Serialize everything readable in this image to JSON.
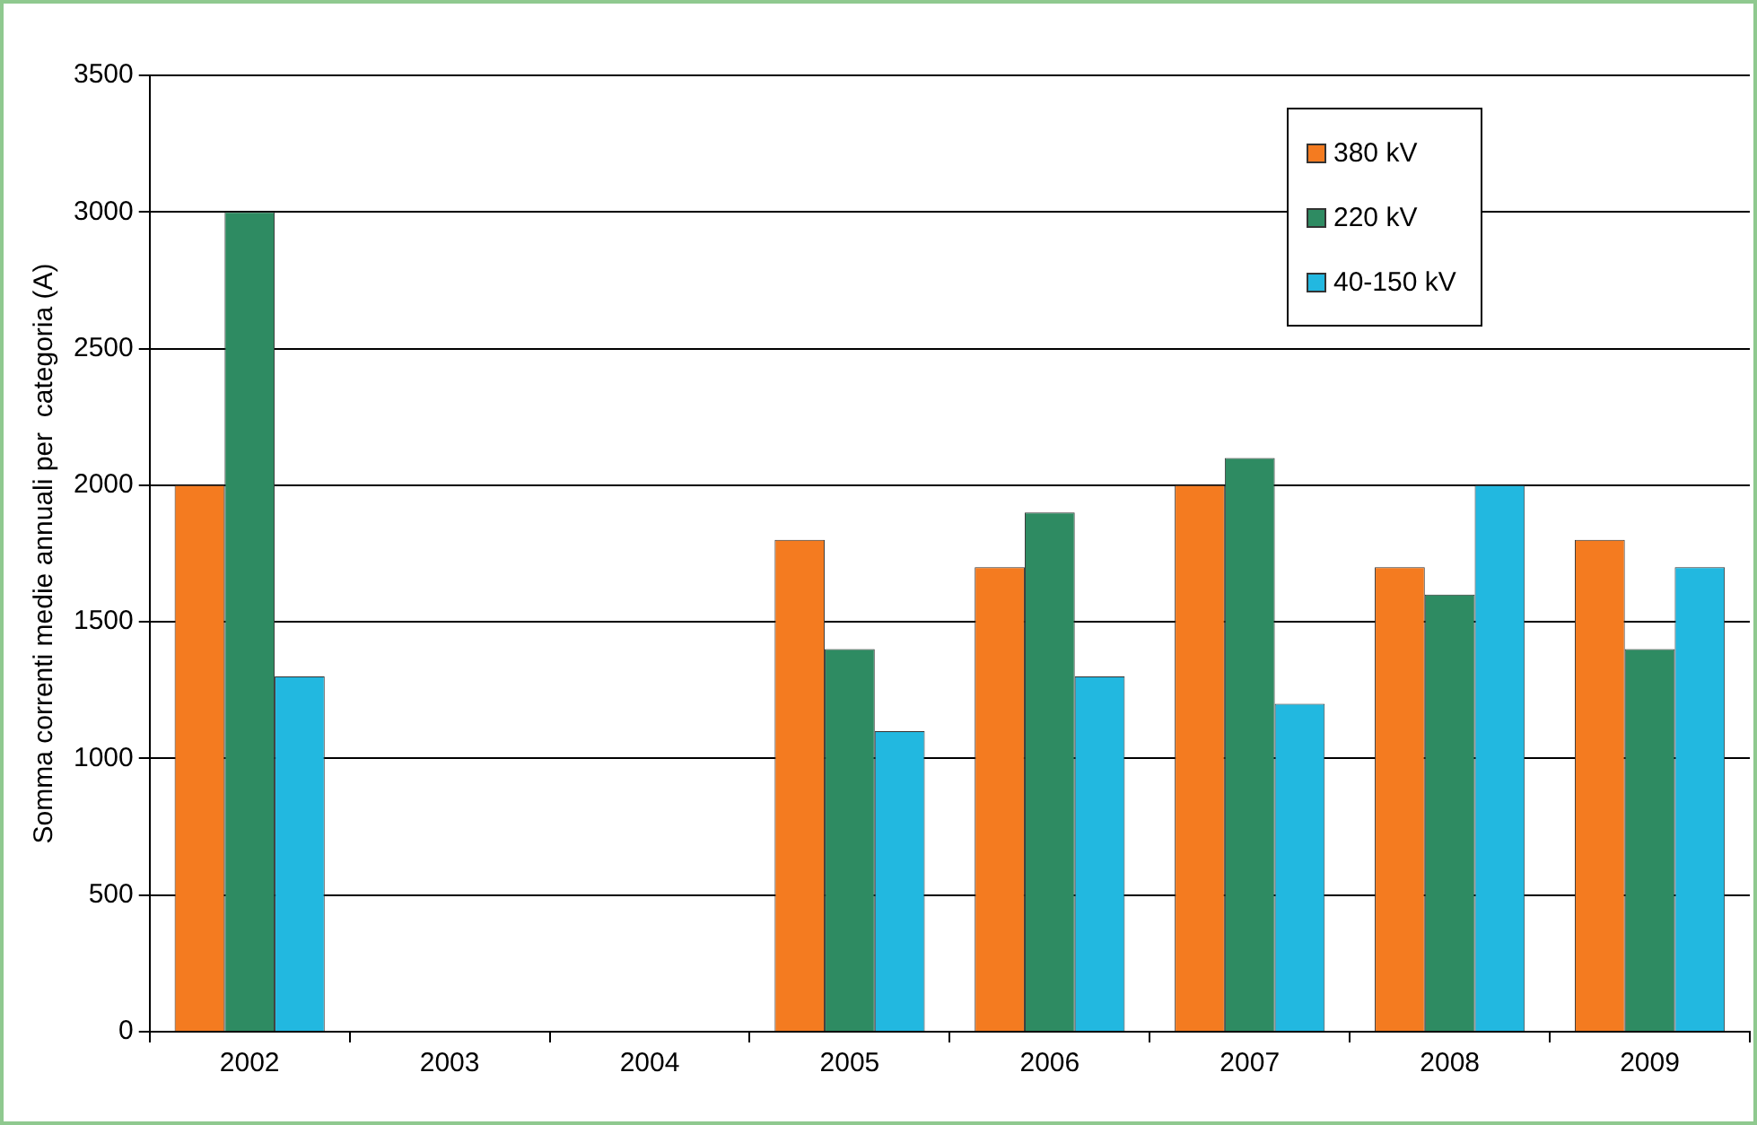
{
  "chart_data": {
    "type": "bar",
    "ylabel": "Somma correnti medie annuali per  categoria (A)",
    "categories": [
      "2002",
      "2003",
      "2004",
      "2005",
      "2006",
      "2007",
      "2008",
      "2009"
    ],
    "series": [
      {
        "name": "380  kV",
        "color": "#f47b20",
        "values": [
          2000,
          null,
          null,
          1800,
          1700,
          2000,
          1700,
          1800
        ]
      },
      {
        "name": "220  kV",
        "color": "#2e8b62",
        "values": [
          3000,
          null,
          null,
          1400,
          1900,
          2100,
          1600,
          1400
        ]
      },
      {
        "name": "40-150  kV",
        "color": "#22b8e0",
        "values": [
          1300,
          null,
          null,
          1100,
          1300,
          1200,
          2000,
          1700
        ]
      }
    ],
    "ylim": [
      0,
      3500
    ],
    "yticks": [
      0,
      500,
      1000,
      1500,
      2000,
      2500,
      3000,
      3500
    ],
    "grid": "y",
    "legend": "top right"
  }
}
